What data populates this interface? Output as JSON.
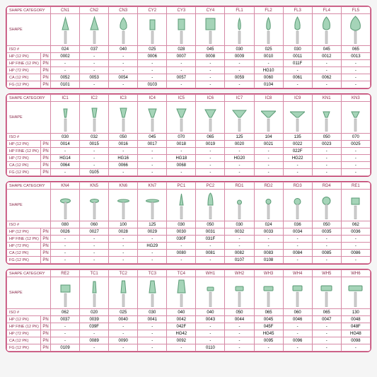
{
  "colors": {
    "panel_border": "#c23a6a",
    "cell_border": "#d68aa6",
    "header_text": "#8a2a4a",
    "shape_fill": "#a5d4b8",
    "shape_stroke": "#5a9a75",
    "shank_fill": "#d0d0d0",
    "shank_stroke": "#999"
  },
  "row_headers": {
    "shape_cat": "SHAPE CATEGORY",
    "shape": "SHAPE",
    "iso": "ISO #",
    "hp12": "HP (12 PK)",
    "hpfine12": "HP FINE (12 PK)",
    "hp72": "HP (72 PK)",
    "ca12": "CA (12 PK)",
    "fg12": "FG (12 PK)",
    "pn": "PN"
  },
  "panels": [
    {
      "cols": [
        "CN1",
        "CN2",
        "CN3",
        "CY2",
        "CY3",
        "CY4",
        "FL1",
        "FL2",
        "FL3",
        "FL4",
        "FL5"
      ],
      "shapes": [
        "cone-sm",
        "cone-md",
        "drop",
        "cyl-sm",
        "cyl-md",
        "cyl-lg",
        "flame-xs",
        "flame-sm",
        "flame-md",
        "flame-lg",
        "flame-xl"
      ],
      "iso": [
        "024",
        "037",
        "040",
        "025",
        "028",
        "045",
        "030",
        "025",
        "030",
        "045",
        "065"
      ],
      "hp12": [
        "0002",
        "-",
        "-",
        "0006",
        "0007",
        "0008",
        "0009",
        "0010",
        "0011",
        "0012",
        "0013"
      ],
      "hpfine12": [
        "-",
        "-",
        "-",
        "-",
        "-",
        "-",
        "-",
        "-",
        "011F",
        "-",
        "-"
      ],
      "hp72": [
        "-",
        "-",
        "-",
        "-",
        "-",
        "-",
        "-",
        "HG10",
        "-",
        "-",
        "-"
      ],
      "ca12": [
        "0052",
        "0053",
        "0054",
        "-",
        "0057",
        "-",
        "0059",
        "0060",
        "0061",
        "0062",
        "-"
      ],
      "fg12": [
        "0101",
        "-",
        "-",
        "0103",
        "-",
        "-",
        "-",
        "0104",
        "-",
        "-",
        "-"
      ]
    },
    {
      "cols": [
        "IC1",
        "IC2",
        "IC3",
        "IC4",
        "IC5",
        "IC6",
        "IC7",
        "IC8",
        "IC9",
        "KN1",
        "KN3"
      ],
      "shapes": [
        "invcone-xs",
        "invcone-sm",
        "invcone-sm2",
        "invcone-md",
        "invcone-md2",
        "invcone-lg",
        "invcone-xl",
        "invcone-2xl",
        "invcone-3xl",
        "knife-sm",
        "knife-md"
      ],
      "iso": [
        "030",
        "032",
        "050",
        "045",
        "070",
        "065",
        "125",
        "104",
        "135",
        "050",
        "070"
      ],
      "hp12": [
        "0014",
        "0015",
        "0016",
        "0017",
        "0018",
        "0019",
        "0020",
        "0021",
        "0022",
        "0023",
        "0025"
      ],
      "hpfine12": [
        "-",
        "-",
        "-",
        "-",
        "-",
        "-",
        "-",
        "-",
        "022F",
        "-",
        "-"
      ],
      "hp72": [
        "HG14",
        "-",
        "HG16",
        "-",
        "HG18",
        "-",
        "HG20",
        "-",
        "HG22",
        "-",
        "-"
      ],
      "ca12": [
        "0064",
        "-",
        "0066",
        "-",
        "0068",
        "-",
        "-",
        "-",
        "-",
        "-",
        "-"
      ],
      "fg12": [
        "-",
        "0105",
        "-",
        "-",
        "-",
        "-",
        "-",
        "-",
        "-",
        "-",
        "-"
      ]
    },
    {
      "cols": [
        "KN4",
        "KN5",
        "KN6",
        "KN7",
        "PC1",
        "PC2",
        "RD1",
        "RD2",
        "RD3",
        "RD4",
        "RE1"
      ],
      "shapes": [
        "knife-lg",
        "knife-xl",
        "disc-sm",
        "disc-lg",
        "point-sm",
        "bullet",
        "round-xs",
        "round-sm",
        "round-md",
        "round-lg",
        "rect-sm"
      ],
      "iso": [
        "080",
        "060",
        "100",
        "125",
        "030",
        "050",
        "030",
        "024",
        "036",
        "050",
        "062"
      ],
      "hp12": [
        "0026",
        "0027",
        "0028",
        "0029",
        "0030",
        "0031",
        "0032",
        "0033",
        "0034",
        "0035",
        "0036"
      ],
      "hpfine12": [
        "-",
        "-",
        "-",
        "-",
        "030F",
        "031F",
        "-",
        "-",
        "-",
        "-",
        "-"
      ],
      "hp72": [
        "-",
        "-",
        "-",
        "HG29",
        "-",
        "-",
        "-",
        "-",
        "-",
        "-",
        "-"
      ],
      "ca12": [
        "-",
        "-",
        "-",
        "-",
        "0080",
        "0081",
        "0082",
        "0083",
        "0084",
        "0085",
        "0086"
      ],
      "fg12": [
        "-",
        "-",
        "-",
        "-",
        "-",
        "-",
        "0107",
        "0108",
        "-",
        "-",
        "-"
      ]
    },
    {
      "cols": [
        "RE2",
        "TC1",
        "TC2",
        "TC3",
        "TC4",
        "WH1",
        "WH2",
        "WH3",
        "WH4",
        "WH5",
        "WH6"
      ],
      "shapes": [
        "rect-lg",
        "taper-sm",
        "taper-md",
        "taper-lg",
        "taper-xl",
        "wheel-xs",
        "wheel-sm",
        "wheel-md",
        "wheel-lg",
        "wheel-xl",
        "wheel-2xl"
      ],
      "iso": [
        "062",
        "020",
        "025",
        "030",
        "040",
        "040",
        "050",
        "065",
        "060",
        "065",
        "130"
      ],
      "hp12": [
        "0037",
        "0039",
        "0040",
        "0041",
        "0042",
        "0043",
        "0044",
        "0045",
        "0046",
        "0047",
        "0048"
      ],
      "hpfine12": [
        "-",
        "039F",
        "-",
        "-",
        "042F",
        "-",
        "-",
        "045F",
        "-",
        "-",
        "048F"
      ],
      "hp72": [
        "-",
        "-",
        "-",
        "-",
        "HG42",
        "-",
        "-",
        "HG45",
        "-",
        "-",
        "HG48"
      ],
      "ca12": [
        "-",
        "0089",
        "0090",
        "-",
        "0092",
        "-",
        "-",
        "0095",
        "0096",
        "-",
        "0098"
      ],
      "fg12": [
        "0109",
        "-",
        "-",
        "-",
        "-",
        "0110",
        "-",
        "-",
        "-",
        "-",
        "-"
      ]
    }
  ]
}
